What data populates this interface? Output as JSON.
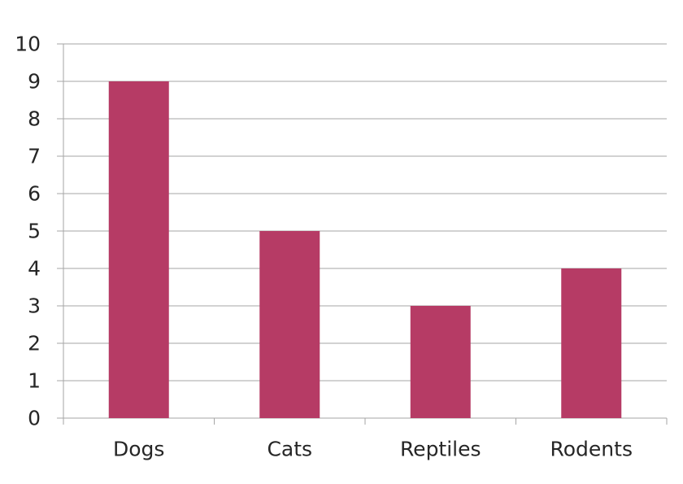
{
  "chart_data": {
    "type": "bar",
    "categories": [
      "Dogs",
      "Cats",
      "Reptiles",
      "Rodents"
    ],
    "values": [
      9,
      5,
      3,
      4
    ],
    "title": "",
    "xlabel": "",
    "ylabel": "",
    "ylim": [
      0,
      10
    ],
    "yticks": [
      "0",
      "1",
      "2",
      "3",
      "4",
      "5",
      "6",
      "7",
      "8",
      "9",
      "10"
    ],
    "grid": true,
    "legend": "none",
    "colors": {
      "bar": "#b63b65",
      "grid": "#a6a6a6",
      "axis": "#a6a6a6",
      "text": "#262626"
    }
  }
}
